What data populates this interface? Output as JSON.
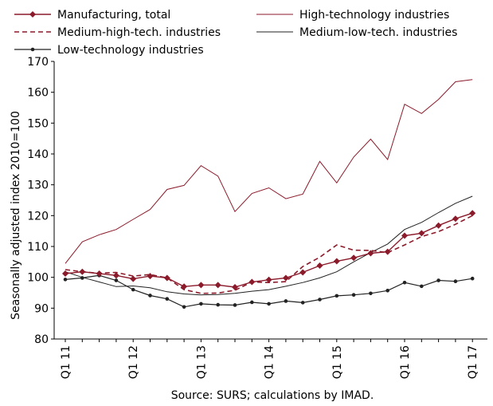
{
  "chart_data": {
    "type": "line",
    "title": "",
    "ylabel": "Seasonally adjusted index 2010=100",
    "source": "Source: SURS; calculations by IMAD.",
    "ylim": [
      80,
      170
    ],
    "yticks": [
      80,
      90,
      100,
      110,
      120,
      130,
      140,
      150,
      160,
      170
    ],
    "grid": false,
    "legend_placement": "top",
    "x_tick_labels": [
      "Q1 11",
      "Q1 12",
      "Q1 13",
      "Q1 14",
      "Q1 15",
      "Q1 16",
      "Q1 17"
    ],
    "x_tick_indices": [
      0,
      4,
      8,
      12,
      16,
      20,
      24
    ],
    "x": [
      "Q1 11",
      "Q2 11",
      "Q3 11",
      "Q4 11",
      "Q1 12",
      "Q2 12",
      "Q3 12",
      "Q4 12",
      "Q1 13",
      "Q2 13",
      "Q3 13",
      "Q4 13",
      "Q1 14",
      "Q2 14",
      "Q3 14",
      "Q4 14",
      "Q1 15",
      "Q2 15",
      "Q3 15",
      "Q4 15",
      "Q1 16",
      "Q2 16",
      "Q3 16",
      "Q4 16",
      "Q1 17"
    ],
    "series": [
      {
        "name": "Manufacturing, total",
        "color": "#8B1A2B",
        "style": "solid-diamond",
        "values": [
          101.2,
          101.8,
          101.2,
          100.6,
          99.5,
          100.4,
          99.8,
          97.0,
          97.5,
          97.5,
          96.8,
          98.5,
          99.2,
          99.8,
          101.6,
          103.8,
          105.2,
          106.3,
          107.8,
          108.3,
          113.5,
          114.3,
          116.8,
          119.0,
          120.8
        ]
      },
      {
        "name": "High-technology industries",
        "color": "#8B1A2B",
        "style": "thin",
        "values": [
          104.5,
          111.5,
          113.8,
          115.5,
          118.8,
          122.0,
          128.5,
          129.8,
          136.2,
          132.8,
          121.3,
          127.2,
          129.0,
          125.5,
          127.0,
          137.6,
          130.6,
          139.0,
          144.8,
          138.2,
          156.1,
          153.1,
          157.7,
          163.4,
          164.1
        ]
      },
      {
        "name": "Medium-high-tech. industries",
        "color": "#8B1A2B",
        "style": "dashed",
        "values": [
          102.5,
          101.8,
          101.3,
          101.6,
          100.4,
          100.9,
          99.8,
          96.0,
          94.8,
          94.9,
          95.8,
          98.5,
          98.3,
          98.6,
          103.5,
          106.5,
          110.5,
          108.8,
          108.7,
          108.0,
          110.5,
          113.2,
          114.8,
          117.2,
          120.0
        ]
      },
      {
        "name": "Medium-low-tech. industries",
        "color": "#222222",
        "style": "thin",
        "values": [
          101.8,
          100.0,
          98.5,
          97.0,
          97.2,
          96.6,
          95.3,
          94.6,
          94.3,
          94.4,
          94.8,
          95.5,
          96.0,
          97.1,
          98.3,
          99.8,
          101.8,
          105.0,
          108.0,
          110.8,
          115.5,
          117.8,
          121.0,
          124.0,
          126.3
        ]
      },
      {
        "name": "Low-technology industries",
        "color": "#222222",
        "style": "solid-dot",
        "values": [
          99.3,
          99.8,
          100.6,
          99.0,
          96.0,
          94.1,
          93.0,
          90.4,
          91.4,
          91.1,
          91.0,
          91.9,
          91.4,
          92.3,
          91.8,
          92.8,
          94.0,
          94.3,
          94.8,
          95.7,
          98.3,
          97.1,
          99.0,
          98.7,
          99.6
        ]
      }
    ]
  }
}
